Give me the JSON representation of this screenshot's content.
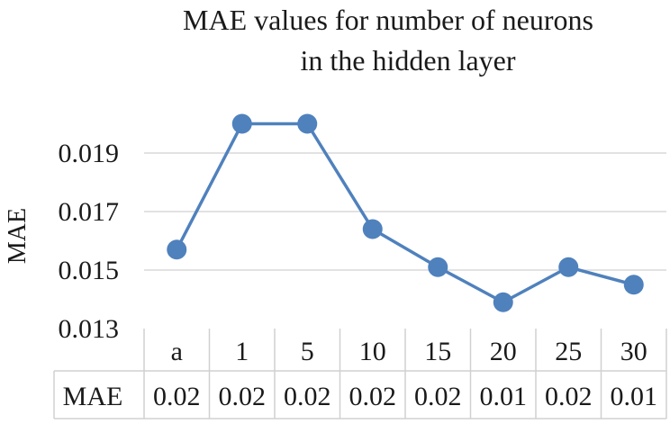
{
  "chart_data": {
    "type": "line",
    "title_lines": [
      "MAE values for number of neurons",
      "in the hidden layer"
    ],
    "ylabel": "MAE",
    "xlabel": "",
    "categories": [
      "a",
      "1",
      "5",
      "10",
      "15",
      "20",
      "25",
      "30"
    ],
    "yticks": [
      "0.013",
      "0.015",
      "0.017",
      "0.019"
    ],
    "ytick_values": [
      0.013,
      0.015,
      0.017,
      0.019
    ],
    "ylim": [
      0.013,
      0.021
    ],
    "series": [
      {
        "values": [
          0.0157,
          0.02,
          0.02,
          0.0164,
          0.0151,
          0.0139,
          0.0151,
          0.0145
        ],
        "color": "#4f81bd"
      }
    ],
    "grid": true,
    "table": {
      "row_label": "MAE",
      "cells": [
        "0.02",
        "0.02",
        "0.02",
        "0.02",
        "0.02",
        "0.01",
        "0.02",
        "0.01"
      ]
    },
    "colors": {
      "line": "#4f81bd",
      "grid": "#d9d9d9",
      "table_border": "#d0d0d0"
    }
  }
}
